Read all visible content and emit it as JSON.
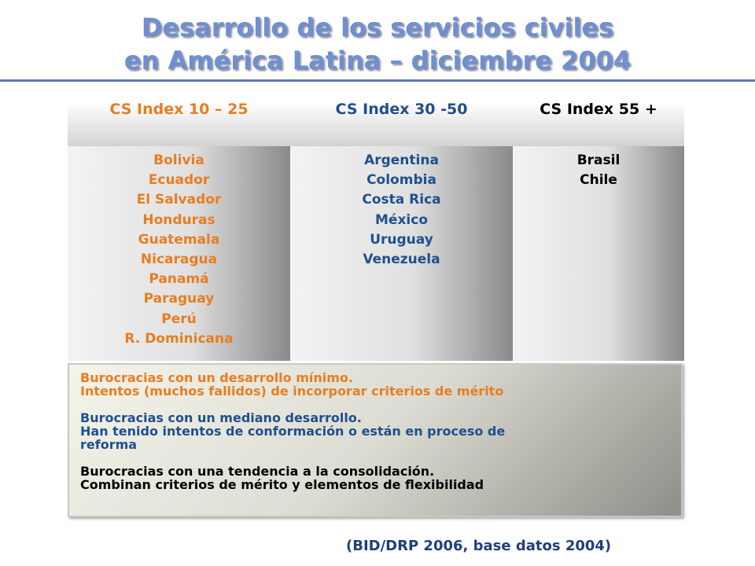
{
  "title": {
    "line1": "Desarrollo de los servicios civiles",
    "line2": "en América Latina – diciembre 2004"
  },
  "columns": [
    {
      "header": "CS Index 10 – 25",
      "items": [
        "Bolivia",
        "Ecuador",
        "El Salvador",
        "Honduras",
        "Guatemala",
        "Nicaragua",
        "Panamá",
        "Paraguay",
        "Perú",
        "R. Dominicana"
      ]
    },
    {
      "header": "CS Index 30 -50",
      "items": [
        "Argentina",
        "Colombia",
        "Costa Rica",
        "México",
        "Uruguay",
        "Venezuela"
      ]
    },
    {
      "header": "CS Index 55 +",
      "items": [
        "Brasil",
        "Chile"
      ]
    }
  ],
  "legend": {
    "group1": {
      "line1": "Burocracias con un desarrollo mínimo.",
      "line2": "Intentos (muchos fallidos) de incorporar criterios de mérito"
    },
    "group2": {
      "line1": "Burocracias con un mediano desarrollo.",
      "line2": "Han tenido intentos de conformación o están en proceso de",
      "line3": "reforma"
    },
    "group3": {
      "line1": "Burocracias con una tendencia a la consolidación.",
      "line2": "Combinan criterios de mérito y elementos de flexibilidad"
    }
  },
  "colors": {
    "low": "#e87d21",
    "mid": "#1f4f8f",
    "high": "#000000",
    "title": "#6f8fd3"
  },
  "source": "(BID/DRP 2006, base datos 2004)"
}
